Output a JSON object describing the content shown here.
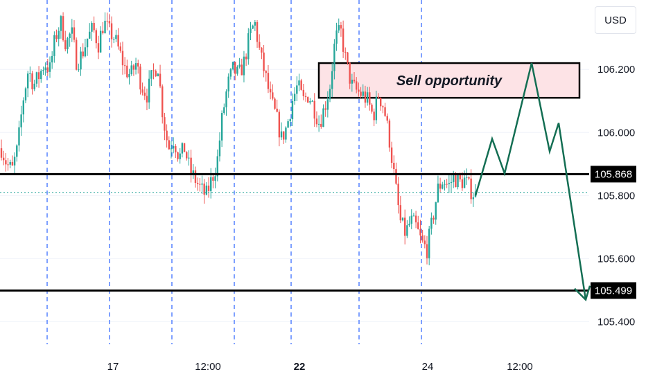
{
  "currency": "USD",
  "colors": {
    "up": "#26a69a",
    "down": "#ef5350",
    "level": "#000000",
    "projection": "#136e53",
    "zone_fill": "#fde3e6",
    "dashed": "#2962ff",
    "grid": "#f0f3fa",
    "current_price_line": "#26a69a"
  },
  "chart_data": {
    "type": "candlestick",
    "y_axis": {
      "ylim": [
        105.366,
        106.42
      ],
      "ticks": [
        "106.200",
        "106.000",
        "105.800",
        "105.600",
        "105.400"
      ]
    },
    "x_axis": {
      "ticks": [
        {
          "label": "17",
          "bold": false
        },
        {
          "label": "12:00",
          "bold": false
        },
        {
          "label": "22",
          "bold": true
        },
        {
          "label": "24",
          "bold": false
        },
        {
          "label": "12:00",
          "bold": false
        }
      ]
    },
    "levels": [
      {
        "label": "105.868",
        "value": 105.868
      },
      {
        "label": "105.499",
        "value": 105.499
      }
    ],
    "current_price": 105.81,
    "sell_zone": {
      "label": "Sell opportunity",
      "from": 106.11,
      "to": 106.22
    },
    "projection": [
      105.8,
      105.98,
      105.87,
      106.22,
      105.94,
      106.03,
      105.47
    ],
    "candle_path": [
      105.95,
      105.9,
      105.88,
      105.95,
      106.1,
      106.2,
      106.15,
      106.18,
      106.22,
      106.2,
      106.3,
      106.35,
      106.28,
      106.32,
      106.22,
      106.25,
      106.3,
      106.33,
      106.28,
      106.35,
      106.32,
      106.3,
      106.25,
      106.2,
      106.18,
      106.22,
      106.15,
      106.12,
      106.18,
      106.22,
      106.05,
      105.95,
      105.98,
      105.92,
      105.95,
      105.88,
      105.85,
      105.82,
      105.8,
      105.85,
      105.9,
      106.05,
      106.15,
      106.2,
      106.18,
      106.22,
      106.3,
      106.35,
      106.25,
      106.18,
      106.1,
      106.05,
      105.98,
      106.02,
      106.1,
      106.15,
      106.1,
      106.12,
      106.08,
      106.03,
      106.08,
      106.15,
      106.3,
      106.32,
      106.22,
      106.15,
      106.13,
      106.12,
      106.1,
      106.05,
      106.12,
      106.08,
      105.98,
      105.85,
      105.72,
      105.68,
      105.72,
      105.7,
      105.65,
      105.63,
      105.72,
      105.82,
      105.85,
      105.83,
      105.86,
      105.84,
      105.85,
      105.82,
      105.8
    ]
  }
}
